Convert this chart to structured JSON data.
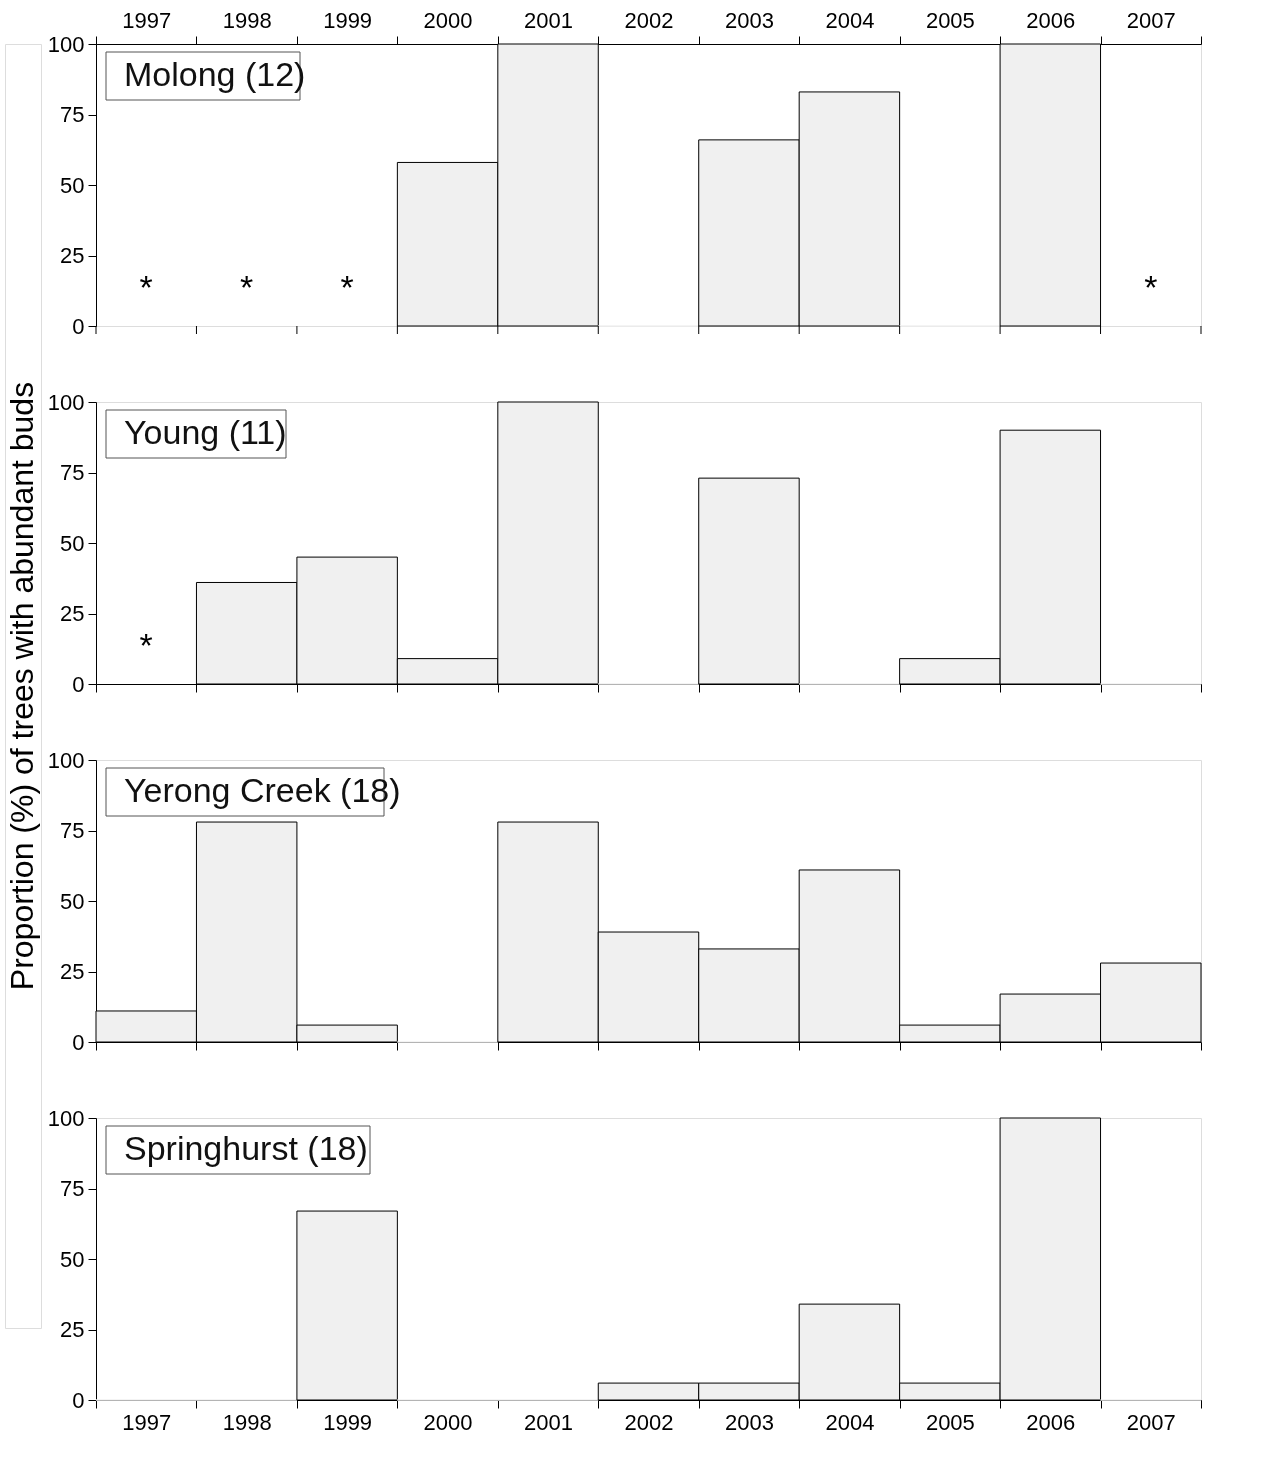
{
  "chart_data": [
    {
      "type": "bar",
      "title": "Molong (12)",
      "ylabel": "Proportion (%) of trees with abundant buds",
      "categories": [
        "1997",
        "1998",
        "1999",
        "2000",
        "2001",
        "2002",
        "2003",
        "2004",
        "2005",
        "2006",
        "2007"
      ],
      "values": [
        null,
        null,
        null,
        58,
        100,
        0,
        66,
        83,
        0,
        100,
        null
      ],
      "color": "#f0f0f0",
      "ylim": [
        0,
        100
      ],
      "yticks": [
        0,
        25,
        50,
        75,
        100
      ],
      "grid": false,
      "annotations": [
        "*",
        "*",
        "*",
        "*"
      ]
    },
    {
      "type": "bar",
      "title": "Young (11)",
      "categories": [
        "1997",
        "1998",
        "1999",
        "2000",
        "2001",
        "2002",
        "2003",
        "2004",
        "2005",
        "2006",
        "2007"
      ],
      "values": [
        null,
        36,
        45,
        9,
        100,
        0,
        73,
        0,
        9,
        90,
        0
      ],
      "color": "#f0f0f0",
      "ylim": [
        0,
        100
      ],
      "yticks": [
        0,
        25,
        50,
        75,
        100
      ],
      "grid": false,
      "tick_labels": "y",
      "annotations": [
        "*"
      ]
    },
    {
      "type": "bar",
      "title": "Yerong Creek (18)",
      "categories": [
        "1997",
        "1998",
        "1999",
        "2000",
        "2001",
        "2002",
        "2003",
        "2004",
        "2005",
        "2006",
        "2007"
      ],
      "values": [
        11,
        78,
        6,
        0,
        78,
        39,
        33,
        61,
        6,
        17,
        28
      ],
      "color": "#f0f0f0",
      "ylim": [
        0,
        100
      ],
      "yticks": [
        0,
        25,
        50,
        75,
        100
      ],
      "grid": false,
      "tick_labels": "y"
    },
    {
      "type": "bar",
      "title": "Springhurst (18)",
      "categories": [
        "1997",
        "1998",
        "1999",
        "2000",
        "2001",
        "2002",
        "2003",
        "2004",
        "2005",
        "2006",
        "2007"
      ],
      "values": [
        0,
        0,
        67,
        0,
        0,
        6,
        6,
        34,
        6,
        100,
        0
      ],
      "color": "#f0f0f0",
      "ylim": [
        0,
        100
      ],
      "yticks": [
        0,
        25,
        50,
        75,
        100
      ],
      "grid": false
    }
  ]
}
